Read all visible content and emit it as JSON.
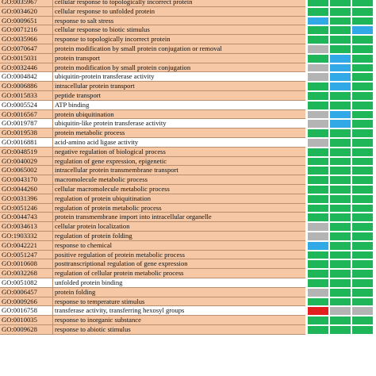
{
  "status_colors": {
    "green": "#1fb559",
    "blue": "#30a9e6",
    "gray": "#b4b4b4",
    "red": "#e21e1e"
  },
  "row_backgrounds": {
    "b": "#f6c8a5",
    "w": "#ffffff"
  },
  "rows": [
    {
      "id": "GO:0035967",
      "term": "cellular response to topologically incorrect protein",
      "bg": "b",
      "cells": [
        "green",
        "green",
        "green"
      ]
    },
    {
      "id": "GO:0034620",
      "term": "cellular response to unfolded protein",
      "bg": "b",
      "cells": [
        "green",
        "green",
        "green"
      ]
    },
    {
      "id": "GO:0009651",
      "term": "response to salt stress",
      "bg": "b",
      "cells": [
        "blue",
        "green",
        "green"
      ]
    },
    {
      "id": "GO:0071216",
      "term": "cellular response to biotic stimulus",
      "bg": "b",
      "cells": [
        "green",
        "green",
        "blue"
      ]
    },
    {
      "id": "GO:0035966",
      "term": "response to topologically incorrect protein",
      "bg": "b",
      "cells": [
        "green",
        "green",
        "green"
      ]
    },
    {
      "id": "GO:0070647",
      "term": "protein modification by small protein conjugation or removal",
      "bg": "b",
      "cells": [
        "gray",
        "green",
        "green"
      ]
    },
    {
      "id": "GO:0015031",
      "term": "protein transport",
      "bg": "b",
      "cells": [
        "green",
        "blue",
        "green"
      ]
    },
    {
      "id": "GO:0032446",
      "term": "protein modification by small protein conjugation",
      "bg": "b",
      "cells": [
        "gray",
        "blue",
        "green"
      ]
    },
    {
      "id": "GO:0004842",
      "term": "ubiquitin-protein transferase activity",
      "bg": "w",
      "cells": [
        "gray",
        "blue",
        "green"
      ]
    },
    {
      "id": "GO:0006886",
      "term": "intracellular protein transport",
      "bg": "b",
      "cells": [
        "green",
        "blue",
        "green"
      ]
    },
    {
      "id": "GO:0015833",
      "term": "peptide transport",
      "bg": "b",
      "cells": [
        "green",
        "green",
        "green"
      ]
    },
    {
      "id": "GO:0005524",
      "term": "ATP binding",
      "bg": "w",
      "cells": [
        "green",
        "green",
        "green"
      ]
    },
    {
      "id": "GO:0016567",
      "term": "protein ubiquitination",
      "bg": "b",
      "cells": [
        "gray",
        "blue",
        "green"
      ]
    },
    {
      "id": "GO:0019787",
      "term": "ubiquitin-like protein transferase activity",
      "bg": "w",
      "cells": [
        "gray",
        "blue",
        "green"
      ]
    },
    {
      "id": "GO:0019538",
      "term": "protein metabolic process",
      "bg": "b",
      "cells": [
        "green",
        "green",
        "green"
      ]
    },
    {
      "id": "GO:0016881",
      "term": "acid-amino acid ligase activity",
      "bg": "w",
      "cells": [
        "gray",
        "green",
        "green"
      ]
    },
    {
      "id": "GO:0048519",
      "term": "negative regulation of biological process",
      "bg": "b",
      "cells": [
        "green",
        "green",
        "green"
      ]
    },
    {
      "id": "GO:0040029",
      "term": "regulation of gene expression, epigenetic",
      "bg": "b",
      "cells": [
        "green",
        "green",
        "green"
      ]
    },
    {
      "id": "GO:0065002",
      "term": "intracellular protein transmembrane transport",
      "bg": "b",
      "cells": [
        "green",
        "green",
        "green"
      ]
    },
    {
      "id": "GO:0043170",
      "term": "macromolecule metabolic process",
      "bg": "b",
      "cells": [
        "green",
        "green",
        "green"
      ]
    },
    {
      "id": "GO:0044260",
      "term": "cellular macromolecule metabolic process",
      "bg": "b",
      "cells": [
        "green",
        "green",
        "green"
      ]
    },
    {
      "id": "GO:0031396",
      "term": "regulation of protein ubiquitination",
      "bg": "b",
      "cells": [
        "green",
        "green",
        "green"
      ]
    },
    {
      "id": "GO:0051246",
      "term": "regulation of protein metabolic process",
      "bg": "b",
      "cells": [
        "green",
        "green",
        "green"
      ]
    },
    {
      "id": "GO:0044743",
      "term": "protein transmembrane import into intracellular organelle",
      "bg": "b",
      "cells": [
        "green",
        "green",
        "green"
      ]
    },
    {
      "id": "GO:0034613",
      "term": "cellular protein localization",
      "bg": "b",
      "cells": [
        "gray",
        "green",
        "green"
      ]
    },
    {
      "id": "GO:1903332",
      "term": "regulation of protein folding",
      "bg": "b",
      "cells": [
        "gray",
        "green",
        "green"
      ]
    },
    {
      "id": "GO:0042221",
      "term": "response to chemical",
      "bg": "b",
      "cells": [
        "blue",
        "green",
        "green"
      ]
    },
    {
      "id": "GO:0051247",
      "term": "positive regulation of protein metabolic process",
      "bg": "b",
      "cells": [
        "green",
        "green",
        "green"
      ]
    },
    {
      "id": "GO:0010608",
      "term": "posttranscriptional regulation of gene expression",
      "bg": "b",
      "cells": [
        "green",
        "green",
        "green"
      ]
    },
    {
      "id": "GO:0032268",
      "term": "regulation of cellular protein metabolic process",
      "bg": "b",
      "cells": [
        "green",
        "green",
        "green"
      ]
    },
    {
      "id": "GO:0051082",
      "term": "unfolded protein binding",
      "bg": "w",
      "cells": [
        "green",
        "green",
        "green"
      ]
    },
    {
      "id": "GO:0006457",
      "term": "protein folding",
      "bg": "b",
      "cells": [
        "gray",
        "green",
        "green"
      ]
    },
    {
      "id": "GO:0009266",
      "term": "response to temperature stimulus",
      "bg": "b",
      "cells": [
        "green",
        "green",
        "green"
      ]
    },
    {
      "id": "GO:0016758",
      "term": "transferase activity, transferring hexosyl groups",
      "bg": "w",
      "cells": [
        "red",
        "gray",
        "gray"
      ]
    },
    {
      "id": "GO:0010035",
      "term": "response to inorganic substance",
      "bg": "b",
      "cells": [
        "green",
        "green",
        "green"
      ]
    },
    {
      "id": "GO:0009628",
      "term": "response to abiotic stimulus",
      "bg": "b",
      "cells": [
        "green",
        "green",
        "green"
      ]
    }
  ]
}
